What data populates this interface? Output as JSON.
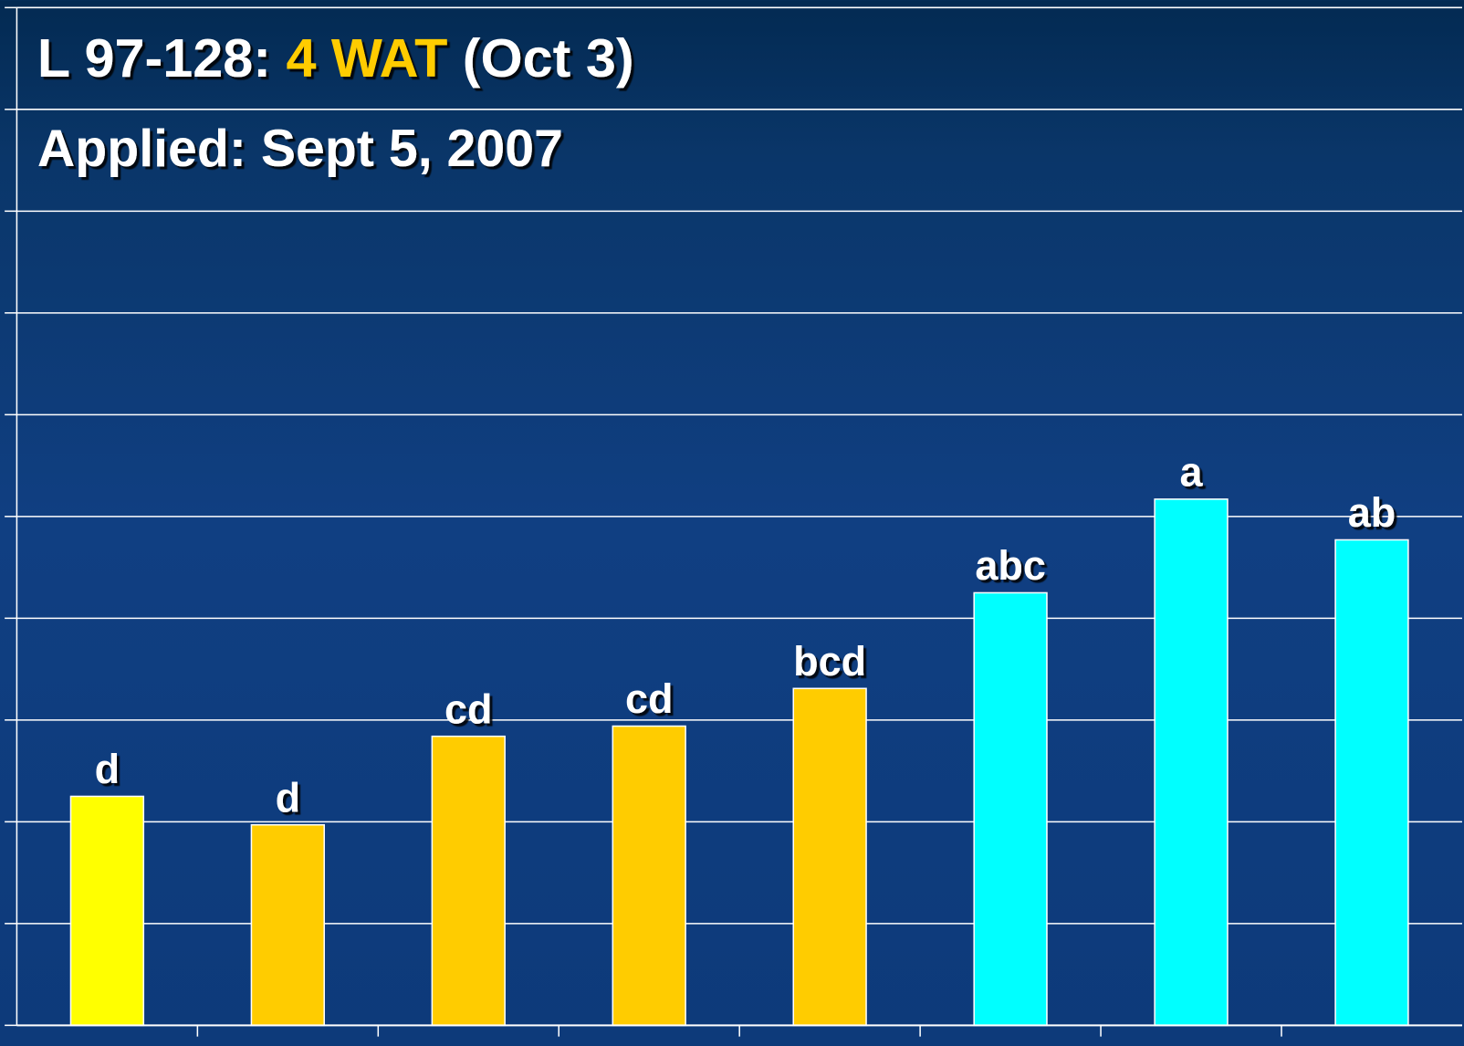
{
  "chart_data": {
    "type": "bar",
    "title_parts": [
      "L 97-128:",
      "4 WAT",
      "(Oct 3)"
    ],
    "subtitle": "Applied: Sept 5, 2007",
    "categories": [
      null,
      null,
      null,
      null,
      null,
      null,
      null,
      null
    ],
    "values": [
      2.25,
      1.97,
      2.84,
      2.94,
      3.31,
      4.25,
      5.17,
      4.77
    ],
    "annotations": [
      "d",
      "d",
      "cd",
      "cd",
      "bcd",
      "abc",
      "a",
      "ab"
    ],
    "colors": [
      "#ffff00",
      "#ffcc00",
      "#ffcc00",
      "#ffcc00",
      "#ffcc00",
      "#00ffff",
      "#00ffff",
      "#00ffff"
    ],
    "ylim": [
      0,
      10
    ],
    "yticks": [
      0,
      1,
      2,
      3,
      4,
      5,
      6,
      7,
      8,
      9,
      10
    ],
    "grid": true
  }
}
